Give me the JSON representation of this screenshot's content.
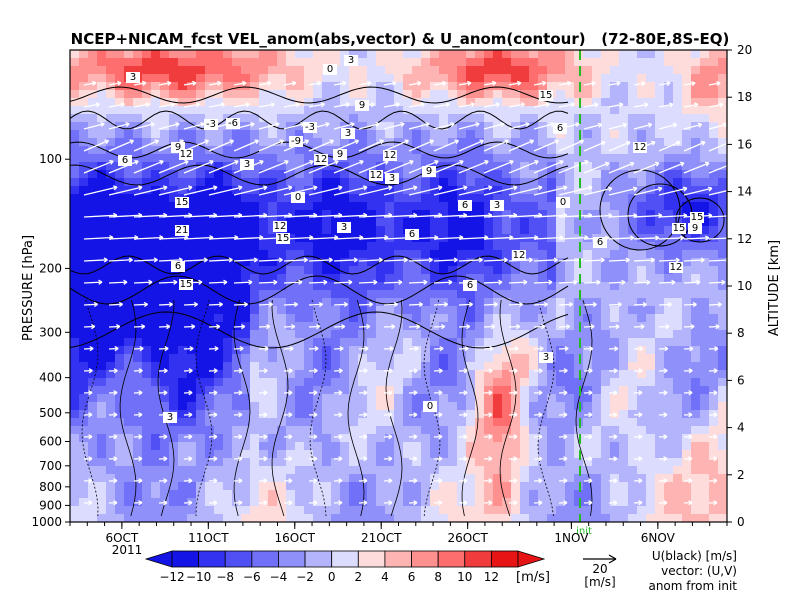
{
  "chart_data": {
    "type": "heatmap",
    "title": "NCEP+NICAM_fcst VEL_anom(abs,vector) & U_anom(contour)   (72-80E,8S-EQ)",
    "xlabel": "",
    "ylabel": "PRESSURE [hPa]",
    "y2label": "ALTITUDE [km]",
    "x_range": [
      "2011-10-03",
      "2011-11-10"
    ],
    "x_ticks": [
      {
        "date": "2011-10-06",
        "label": "6OCT"
      },
      {
        "date": "2011-10-11",
        "label": "11OCT"
      },
      {
        "date": "2011-10-16",
        "label": "16OCT"
      },
      {
        "date": "2011-10-21",
        "label": "21OCT"
      },
      {
        "date": "2011-10-26",
        "label": "26OCT"
      },
      {
        "date": "2011-11-01",
        "label": "1NOV"
      },
      {
        "date": "2011-11-06",
        "label": "6NOV"
      }
    ],
    "year_label": "2011",
    "y_scale": "log",
    "y_range": [
      1000,
      50
    ],
    "y_ticks": [
      100,
      200,
      300,
      400,
      500,
      600,
      700,
      800,
      900,
      1000
    ],
    "y2_range": [
      0,
      20
    ],
    "y2_ticks": [
      0,
      2,
      4,
      6,
      8,
      10,
      12,
      14,
      16,
      18,
      20
    ],
    "colorbar": {
      "levels": [
        -12,
        -10,
        -8,
        -6,
        -4,
        -2,
        0,
        2,
        4,
        6,
        8,
        10,
        12
      ],
      "tick_labels": [
        "−12",
        "−10",
        "−8",
        "−6",
        "−4",
        "−2",
        "0",
        "2",
        "4",
        "6",
        "8",
        "10",
        "12"
      ],
      "unit": "[m/s]",
      "colors": [
        "#1414e6",
        "#3232f0",
        "#5050f5",
        "#7070f8",
        "#9090fa",
        "#b4b4fc",
        "#dcdcfe",
        "#ffdcdc",
        "#ffb4b4",
        "#ff9090",
        "#ff6e6e",
        "#f03c3c",
        "#e61414"
      ],
      "extend": "both"
    },
    "init_line": {
      "date": "2011-11-01 12:00",
      "label": "init",
      "color": "#22bb22"
    },
    "vector_key": {
      "value": "20",
      "unit": "[m/s]"
    },
    "legend_text": [
      "U(black) [m/s]",
      "vector: (U,V)",
      "anom from init"
    ],
    "contour_labels": [
      "3",
      "0",
      "3",
      "6",
      "9",
      "12",
      "15",
      "21",
      "6",
      "15",
      "12",
      "15",
      "12",
      "9",
      "12",
      "9",
      "6",
      "3",
      "12",
      "15",
      "6",
      "9",
      "12",
      "6",
      "3",
      "0",
      "-3",
      "-6",
      "-3",
      "-9",
      "3",
      "3",
      "0",
      "3",
      "3",
      "6",
      "12",
      "15",
      "12",
      "15",
      "9",
      "6",
      "0",
      "3"
    ]
  }
}
